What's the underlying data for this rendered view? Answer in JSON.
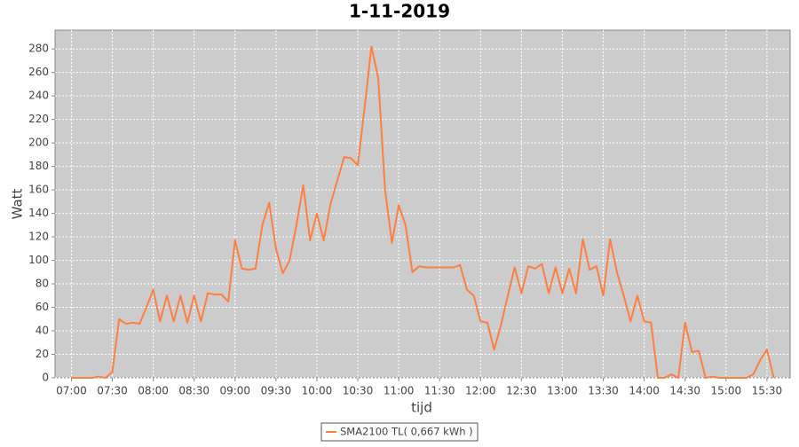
{
  "chart_data": {
    "type": "line",
    "title": "1-11-2019",
    "xlabel": "tijd",
    "ylabel": "Watt",
    "x": [
      "07:00",
      "07:05",
      "07:10",
      "07:15",
      "07:20",
      "07:25",
      "07:30",
      "07:35",
      "07:40",
      "07:45",
      "07:50",
      "07:55",
      "08:00",
      "08:05",
      "08:10",
      "08:15",
      "08:20",
      "08:25",
      "08:30",
      "08:35",
      "08:40",
      "08:45",
      "08:50",
      "08:55",
      "09:00",
      "09:05",
      "09:10",
      "09:15",
      "09:20",
      "09:25",
      "09:30",
      "09:35",
      "09:40",
      "09:45",
      "09:50",
      "09:55",
      "10:00",
      "10:05",
      "10:10",
      "10:15",
      "10:20",
      "10:25",
      "10:30",
      "10:35",
      "10:40",
      "10:45",
      "10:50",
      "10:55",
      "11:00",
      "11:05",
      "11:10",
      "11:15",
      "11:20",
      "11:25",
      "11:30",
      "11:35",
      "11:40",
      "11:45",
      "11:50",
      "11:55",
      "12:00",
      "12:05",
      "12:10",
      "12:15",
      "12:20",
      "12:25",
      "12:30",
      "12:35",
      "12:40",
      "12:45",
      "12:50",
      "12:55",
      "13:00",
      "13:05",
      "13:10",
      "13:15",
      "13:20",
      "13:25",
      "13:30",
      "13:35",
      "13:40",
      "13:45",
      "13:50",
      "13:55",
      "14:00",
      "14:05",
      "14:10",
      "14:15",
      "14:20",
      "14:25",
      "14:30",
      "14:35",
      "14:40",
      "14:45",
      "14:50",
      "14:55",
      "15:00",
      "15:05",
      "15:10",
      "15:15",
      "15:20",
      "15:25",
      "15:30",
      "15:35"
    ],
    "series": [
      {
        "name": "SMA2100 TL( 0,667 kWh )",
        "color": "#ff7f3f",
        "values": [
          0,
          0,
          0,
          0,
          1,
          0,
          5,
          50,
          46,
          47,
          46,
          60,
          75,
          48,
          70,
          48,
          70,
          47,
          70,
          48,
          72,
          71,
          71,
          65,
          117,
          93,
          92,
          93,
          130,
          149,
          110,
          89,
          100,
          130,
          164,
          117,
          140,
          117,
          148,
          168,
          188,
          187,
          181,
          230,
          282,
          255,
          160,
          115,
          147,
          130,
          90,
          95,
          94,
          94,
          94,
          94,
          94,
          96,
          75,
          70,
          48,
          47,
          24,
          45,
          70,
          94,
          72,
          95,
          93,
          97,
          72,
          94,
          72,
          93,
          72,
          118,
          92,
          95,
          70,
          118,
          90,
          70,
          48,
          70,
          48,
          47,
          0,
          0,
          3,
          0,
          47,
          22,
          23,
          0,
          1,
          0,
          0,
          0,
          0,
          0,
          3,
          15,
          24,
          0
        ]
      }
    ],
    "xlim": [
      "06:48",
      "15:47"
    ],
    "xticks": [
      "07:00",
      "07:30",
      "08:00",
      "08:30",
      "09:00",
      "09:30",
      "10:00",
      "10:30",
      "11:00",
      "11:30",
      "12:00",
      "12:30",
      "13:00",
      "13:30",
      "14:00",
      "14:30",
      "15:00",
      "15:30"
    ],
    "ylim": [
      0,
      296
    ],
    "yticks": [
      0,
      20,
      40,
      60,
      80,
      100,
      120,
      140,
      160,
      180,
      200,
      220,
      240,
      260,
      280
    ],
    "grid": true,
    "legend": "bottom"
  }
}
